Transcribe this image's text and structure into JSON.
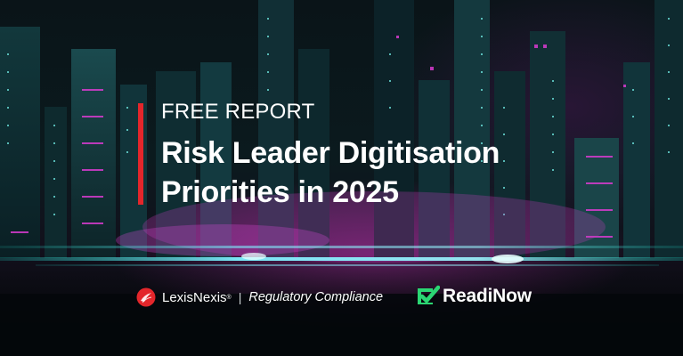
{
  "banner": {
    "kicker": "FREE REPORT",
    "title_line1": "Risk Leader Digitisation",
    "title_line2": "Priorities in 2025",
    "accent_color": "#e3262b"
  },
  "footer": {
    "lexis_name": "LexisNexis",
    "lexis_reg": "®",
    "separator": "|",
    "tagline": "Regulatory Compliance",
    "readinow_name": "ReadiNow",
    "readinow_color": "#2bd673"
  }
}
